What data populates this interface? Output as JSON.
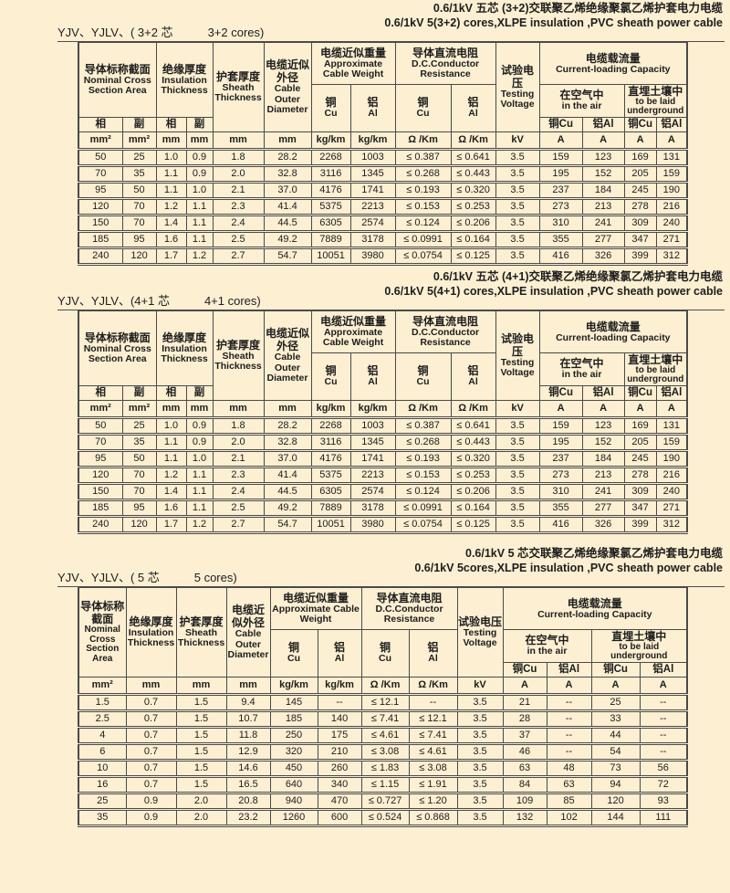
{
  "colors": {
    "page_bg": "#FCEFD2",
    "border": "#4a4a4a",
    "text": "#1d1d1d"
  },
  "headers": {
    "nominal": {
      "cn": "导体标称截面",
      "en": "Nominal Cross Section Area"
    },
    "insulation": {
      "cn": "绝缘厚度",
      "en": "Insulation Thickness"
    },
    "sheath": {
      "cn": "护套厚度",
      "en": "Sheath Thickness"
    },
    "diameter": {
      "cn": "电缆近似外径",
      "en": "Cable Outer Diameter"
    },
    "weight": {
      "cn": "电缆近似重量",
      "en": "Approximate Cable Weight"
    },
    "resistance": {
      "cn": "导体直流电阻",
      "en": "D.C.Conductor Resistance"
    },
    "testing": {
      "cn": "试验电压",
      "en": "Testing Voltage"
    },
    "capacity": {
      "cn": "电缆载流量",
      "en": "Current-loading Capacity"
    },
    "in_air": {
      "cn": "在空气中",
      "en": "in the air"
    },
    "underground": {
      "cn": "直埋土壤中",
      "en": "to be laid underground"
    },
    "cu": {
      "cn": "铜",
      "en": "Cu"
    },
    "al": {
      "cn": "铝",
      "en": "Al"
    },
    "cu_inline": "铜Cu",
    "al_inline": "铝Al",
    "phase": "相",
    "aux": "副"
  },
  "units_15": [
    "mm²",
    "mm²",
    "mm",
    "mm",
    "mm",
    "mm",
    "kg/km",
    "kg/km",
    "Ω /Km",
    "Ω /Km",
    "kV",
    "A",
    "A",
    "A",
    "A"
  ],
  "units_13": [
    "mm²",
    "mm",
    "mm",
    "mm",
    "kg/km",
    "kg/km",
    "Ω /Km",
    "Ω /Km",
    "kV",
    "A",
    "A",
    "A",
    "A"
  ],
  "sections": [
    {
      "title_cn": "0.6/1kV 五芯 (3+2)交联聚乙烯绝缘聚氯乙烯护套电力电缆",
      "title_en": "0.6/1kV 5(3+2) cores,XLPE insulation ,PVC sheath power cable",
      "label_left": "YJV、YJLV、( 3+2 芯",
      "label_right": "3+2 cores)",
      "rows": [
        [
          "50",
          "25",
          "1.0",
          "0.9",
          "1.8",
          "28.2",
          "2268",
          "1003",
          "≤ 0.387",
          "≤ 0.641",
          "3.5",
          "159",
          "123",
          "169",
          "131"
        ],
        [
          "70",
          "35",
          "1.1",
          "0.9",
          "2.0",
          "32.8",
          "3116",
          "1345",
          "≤ 0.268",
          "≤ 0.443",
          "3.5",
          "195",
          "152",
          "205",
          "159"
        ],
        [
          "95",
          "50",
          "1.1",
          "1.0",
          "2.1",
          "37.0",
          "4176",
          "1741",
          "≤ 0.193",
          "≤ 0.320",
          "3.5",
          "237",
          "184",
          "245",
          "190"
        ],
        [
          "120",
          "70",
          "1.2",
          "1.1",
          "2.3",
          "41.4",
          "5375",
          "2213",
          "≤ 0.153",
          "≤ 0.253",
          "3.5",
          "273",
          "213",
          "278",
          "216"
        ],
        [
          "150",
          "70",
          "1.4",
          "1.1",
          "2.4",
          "44.5",
          "6305",
          "2574",
          "≤ 0.124",
          "≤ 0.206",
          "3.5",
          "310",
          "241",
          "309",
          "240"
        ],
        [
          "185",
          "95",
          "1.6",
          "1.1",
          "2.5",
          "49.2",
          "7889",
          "3178",
          "≤ 0.0991",
          "≤ 0.164",
          "3.5",
          "355",
          "277",
          "347",
          "271"
        ],
        [
          "240",
          "120",
          "1.7",
          "1.2",
          "2.7",
          "54.7",
          "10051",
          "3980",
          "≤ 0.0754",
          "≤ 0.125",
          "3.5",
          "416",
          "326",
          "399",
          "312"
        ]
      ]
    },
    {
      "title_cn": "0.6/1kV 五芯 (4+1)交联聚乙烯绝缘聚氯乙烯护套电力电缆",
      "title_en": "0.6/1kV 5(4+1) cores,XLPE insulation ,PVC sheath power cable",
      "label_left": "YJV、YJLV、(4+1 芯",
      "label_right": "4+1 cores)",
      "rows": [
        [
          "50",
          "25",
          "1.0",
          "0.9",
          "1.8",
          "28.2",
          "2268",
          "1003",
          "≤ 0.387",
          "≤ 0.641",
          "3.5",
          "159",
          "123",
          "169",
          "131"
        ],
        [
          "70",
          "35",
          "1.1",
          "0.9",
          "2.0",
          "32.8",
          "3116",
          "1345",
          "≤ 0.268",
          "≤ 0.443",
          "3.5",
          "195",
          "152",
          "205",
          "159"
        ],
        [
          "95",
          "50",
          "1.1",
          "1.0",
          "2.1",
          "37.0",
          "4176",
          "1741",
          "≤ 0.193",
          "≤ 0.320",
          "3.5",
          "237",
          "184",
          "245",
          "190"
        ],
        [
          "120",
          "70",
          "1.2",
          "1.1",
          "2.3",
          "41.4",
          "5375",
          "2213",
          "≤ 0.153",
          "≤ 0.253",
          "3.5",
          "273",
          "213",
          "278",
          "216"
        ],
        [
          "150",
          "70",
          "1.4",
          "1.1",
          "2.4",
          "44.5",
          "6305",
          "2574",
          "≤ 0.124",
          "≤ 0.206",
          "3.5",
          "310",
          "241",
          "309",
          "240"
        ],
        [
          "185",
          "95",
          "1.6",
          "1.1",
          "2.5",
          "49.2",
          "7889",
          "3178",
          "≤ 0.0991",
          "≤ 0.164",
          "3.5",
          "355",
          "277",
          "347",
          "271"
        ],
        [
          "240",
          "120",
          "1.7",
          "1.2",
          "2.7",
          "54.7",
          "10051",
          "3980",
          "≤ 0.0754",
          "≤ 0.125",
          "3.5",
          "416",
          "326",
          "399",
          "312"
        ]
      ]
    },
    {
      "title_cn": "0.6/1kV 5 芯交联聚乙烯绝缘聚氯乙烯护套电力电缆",
      "title_en": "0.6/1kV 5cores,XLPE insulation ,PVC sheath power cable",
      "label_left": "YJV、YJLV、( 5 芯",
      "label_right": "5 cores)",
      "rows": [
        [
          "1.5",
          "0.7",
          "1.5",
          "9.4",
          "145",
          "--",
          "≤ 12.1",
          "--",
          "3.5",
          "21",
          "--",
          "25",
          "--"
        ],
        [
          "2.5",
          "0.7",
          "1.5",
          "10.7",
          "185",
          "140",
          "≤ 7.41",
          "≤ 12.1",
          "3.5",
          "28",
          "--",
          "33",
          "--"
        ],
        [
          "4",
          "0.7",
          "1.5",
          "11.8",
          "250",
          "175",
          "≤ 4.61",
          "≤ 7.41",
          "3.5",
          "37",
          "--",
          "44",
          "--"
        ],
        [
          "6",
          "0.7",
          "1.5",
          "12.9",
          "320",
          "210",
          "≤ 3.08",
          "≤ 4.61",
          "3.5",
          "46",
          "--",
          "54",
          "--"
        ],
        [
          "10",
          "0.7",
          "1.5",
          "14.6",
          "450",
          "260",
          "≤ 1.83",
          "≤ 3.08",
          "3.5",
          "63",
          "48",
          "73",
          "56"
        ],
        [
          "16",
          "0.7",
          "1.5",
          "16.5",
          "640",
          "340",
          "≤ 1.15",
          "≤ 1.91",
          "3.5",
          "84",
          "63",
          "94",
          "72"
        ],
        [
          "25",
          "0.9",
          "2.0",
          "20.8",
          "940",
          "470",
          "≤ 0.727",
          "≤ 1.20",
          "3.5",
          "109",
          "85",
          "120",
          "93"
        ],
        [
          "35",
          "0.9",
          "2.0",
          "23.2",
          "1260",
          "600",
          "≤ 0.524",
          "≤ 0.868",
          "3.5",
          "132",
          "102",
          "144",
          "111"
        ]
      ]
    }
  ]
}
